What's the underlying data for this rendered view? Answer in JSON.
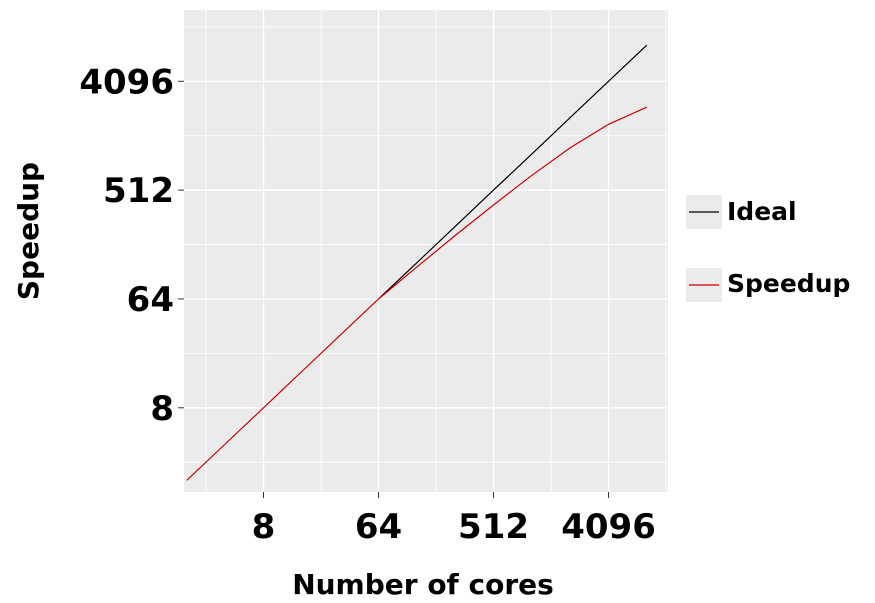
{
  "chart_data": {
    "type": "line",
    "xlabel": "Number of cores",
    "ylabel": "Speedup",
    "x_scale": "log2",
    "y_scale": "log2",
    "x_ticks": [
      8,
      64,
      512,
      4096
    ],
    "y_ticks": [
      8,
      64,
      512,
      4096
    ],
    "x_tick_labels": [
      "8",
      "64",
      "512",
      "4096"
    ],
    "y_tick_labels": [
      "8",
      "64",
      "512",
      "4096"
    ],
    "xlim": [
      1.9,
      12000
    ],
    "ylim": [
      1.6,
      16000
    ],
    "grid": true,
    "legend_position": "right",
    "series": [
      {
        "name": "Ideal",
        "color": "#000000",
        "x": [
          64,
          128,
          256,
          512,
          1024,
          2048,
          4096,
          8192
        ],
        "y": [
          64,
          128,
          256,
          512,
          1024,
          2048,
          4096,
          8192
        ]
      },
      {
        "name": "Speedup",
        "color": "#cc0000",
        "x": [
          2,
          4,
          8,
          16,
          32,
          64,
          128,
          256,
          512,
          1024,
          2048,
          4096,
          8192
        ],
        "y": [
          2,
          4,
          8,
          16,
          32,
          64,
          118,
          215,
          385,
          680,
          1150,
          1800,
          2500
        ]
      }
    ]
  }
}
